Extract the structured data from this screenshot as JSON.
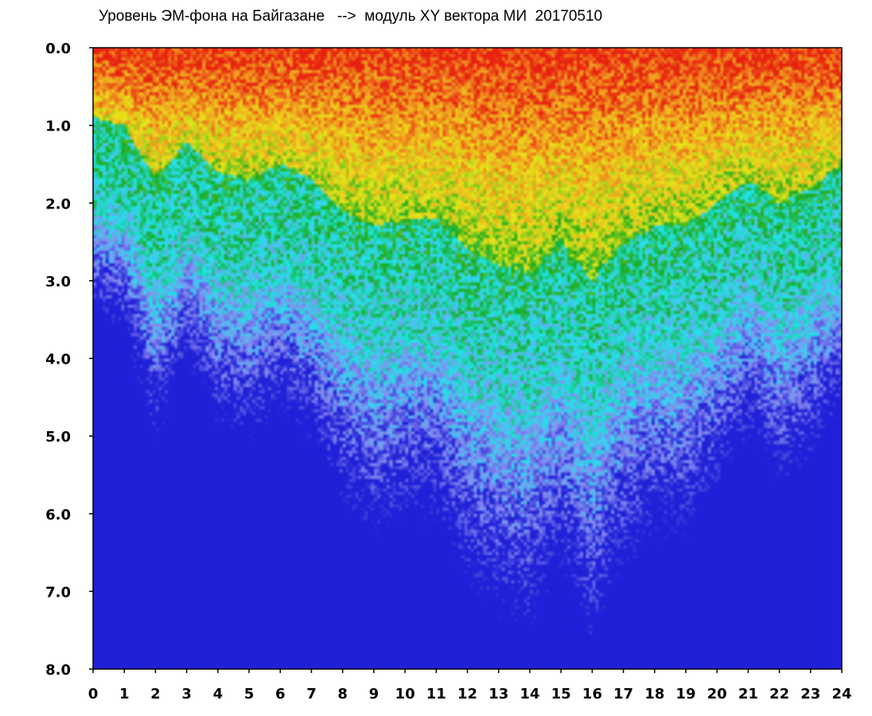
{
  "title": "Уровень ЭМ-фона на Байгазане   -->  модуль XY вектора МИ  20170510",
  "chart_data": {
    "type": "heatmap",
    "title": "Уровень ЭМ-фона на Байгазане   -->  модуль XY вектора МИ  20170510",
    "xlabel": "",
    "ylabel": "",
    "xlim": [
      0,
      24
    ],
    "ylim": [
      0.0,
      8.0
    ],
    "y_inverted": true,
    "x_ticks": [
      "0",
      "1",
      "2",
      "3",
      "4",
      "5",
      "6",
      "7",
      "8",
      "9",
      "10",
      "11",
      "12",
      "13",
      "14",
      "15",
      "16",
      "17",
      "18",
      "19",
      "20",
      "21",
      "22",
      "23",
      "24"
    ],
    "y_ticks": [
      "0.0",
      "1.0",
      "2.0",
      "3.0",
      "4.0",
      "5.0",
      "6.0",
      "7.0",
      "8.0"
    ],
    "grid": false,
    "colormap": [
      "#2020d8",
      "#8a8cf0",
      "#1ee6ee",
      "#1aa81a",
      "#e8e81a",
      "#f0a020",
      "#e82010"
    ],
    "hourly_high_level_edge": [
      0.9,
      1.0,
      1.7,
      1.2,
      1.6,
      1.7,
      1.5,
      1.7,
      2.1,
      2.3,
      2.2,
      2.2,
      2.6,
      2.8,
      2.9,
      2.5,
      3.0,
      2.5,
      2.3,
      2.3,
      2.0,
      1.7,
      2.0,
      1.8,
      1.5
    ]
  }
}
